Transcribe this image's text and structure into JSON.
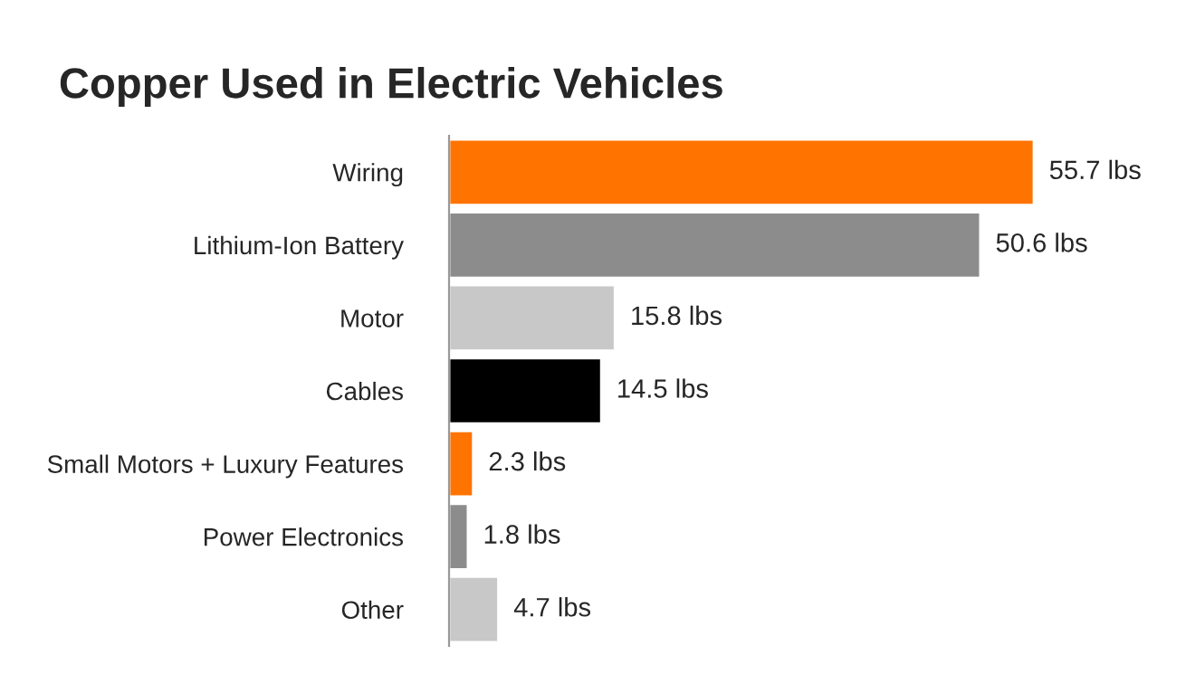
{
  "chart_data": {
    "type": "bar",
    "orientation": "horizontal",
    "title": "Copper Used in Electric Vehicles",
    "categories": [
      "Wiring",
      "Lithium-Ion Battery",
      "Motor",
      "Cables",
      "Small Motors + Luxury Features",
      "Power Electronics",
      "Other"
    ],
    "values": [
      55.7,
      50.6,
      15.8,
      14.5,
      2.3,
      1.8,
      4.7
    ],
    "colors": [
      "#ff7300",
      "#8c8c8c",
      "#c8c8c8",
      "#000000",
      "#ff7300",
      "#8c8c8c",
      "#c8c8c8"
    ],
    "value_labels": [
      "55.7 lbs",
      "50.6 lbs",
      "15.8 lbs",
      "14.5 lbs",
      "2.3 lbs",
      "1.8 lbs",
      "4.7 lbs"
    ],
    "grid": false,
    "legend": false
  }
}
